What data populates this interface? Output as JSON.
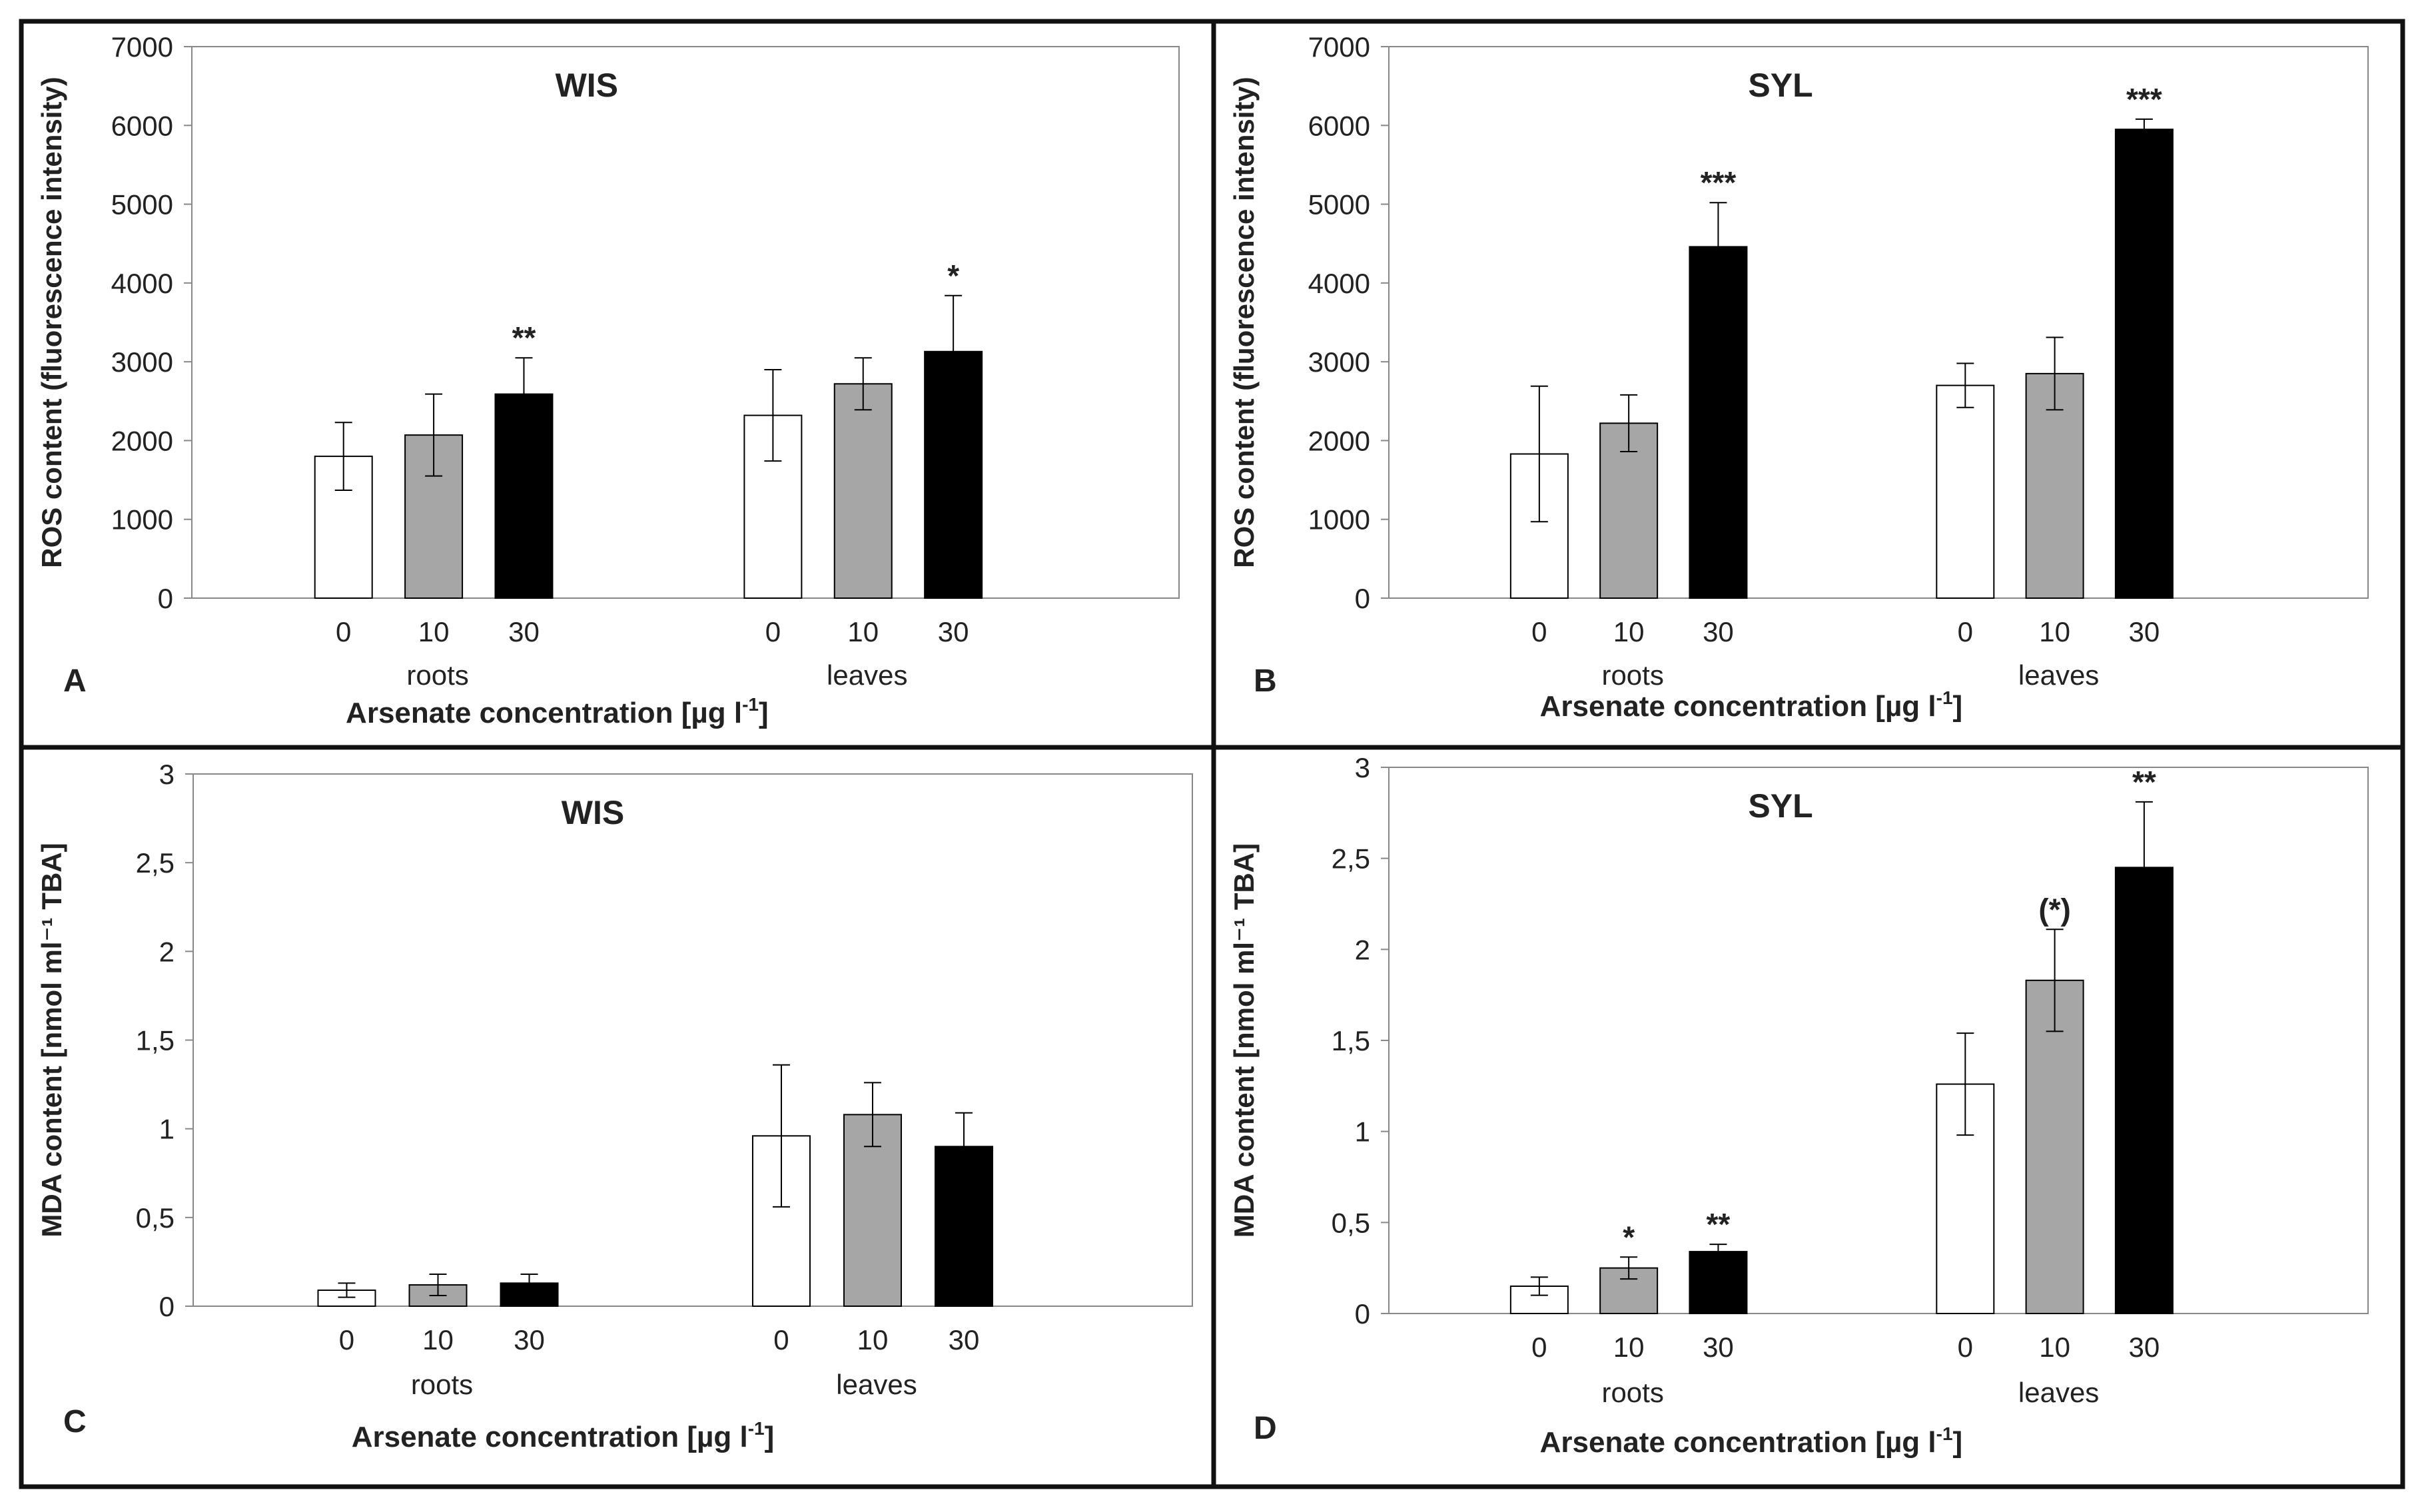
{
  "colors": {
    "0": "#ffffff",
    "10": "#a6a6a6",
    "30": "#000000",
    "border": "#111111",
    "axis": "#888888"
  },
  "chart_data": [
    {
      "type": "bar",
      "panel": "A",
      "title": "WIS",
      "ylabel": "ROS content (fluorescence intensity)",
      "xlabel": "Arsenate concentration [µg l",
      "xlabel_sup": "-1",
      "xlabel_end": "]",
      "ylim": [
        0,
        7000
      ],
      "yticks": [
        "0",
        "1000",
        "2000",
        "3000",
        "4000",
        "5000",
        "6000",
        "7000"
      ],
      "groups": [
        "roots",
        "leaves"
      ],
      "categories": [
        "0",
        "10",
        "30"
      ],
      "bars": [
        {
          "group": "roots",
          "cat": "0",
          "value": 1800,
          "err": 430,
          "sig": ""
        },
        {
          "group": "roots",
          "cat": "10",
          "value": 2070,
          "err": 520,
          "sig": ""
        },
        {
          "group": "roots",
          "cat": "30",
          "value": 2590,
          "err": 460,
          "sig": "**"
        },
        {
          "group": "leaves",
          "cat": "0",
          "value": 2320,
          "err": 580,
          "sig": ""
        },
        {
          "group": "leaves",
          "cat": "10",
          "value": 2720,
          "err": 330,
          "sig": ""
        },
        {
          "group": "leaves",
          "cat": "30",
          "value": 3130,
          "err": 710,
          "sig": "*"
        }
      ]
    },
    {
      "type": "bar",
      "panel": "B",
      "title": "SYL",
      "ylabel": "ROS content (fluorescence intensity)",
      "xlabel": "Arsenate concentration [µg l",
      "xlabel_sup": "-1",
      "xlabel_end": "]",
      "ylim": [
        0,
        7000
      ],
      "yticks": [
        "0",
        "1000",
        "2000",
        "3000",
        "4000",
        "5000",
        "6000",
        "7000"
      ],
      "groups": [
        "roots",
        "leaves"
      ],
      "categories": [
        "0",
        "10",
        "30"
      ],
      "bars": [
        {
          "group": "roots",
          "cat": "0",
          "value": 1830,
          "err": 860,
          "sig": ""
        },
        {
          "group": "roots",
          "cat": "10",
          "value": 2220,
          "err": 360,
          "sig": ""
        },
        {
          "group": "roots",
          "cat": "30",
          "value": 4460,
          "err": 560,
          "sig": "***"
        },
        {
          "group": "leaves",
          "cat": "0",
          "value": 2700,
          "err": 280,
          "sig": ""
        },
        {
          "group": "leaves",
          "cat": "10",
          "value": 2850,
          "err": 460,
          "sig": ""
        },
        {
          "group": "leaves",
          "cat": "30",
          "value": 5950,
          "err": 130,
          "sig": "***"
        }
      ]
    },
    {
      "type": "bar",
      "panel": "C",
      "title": "WIS",
      "ylabel": "MDA content [nmol ml⁻¹ TBA]",
      "xlabel": "Arsenate concentration [µg l",
      "xlabel_sup": "-1",
      "xlabel_end": "]",
      "ylim": [
        0,
        3
      ],
      "yticks": [
        "0",
        "0,5",
        "1",
        "1,5",
        "2",
        "2,5",
        "3"
      ],
      "groups": [
        "roots",
        "leaves"
      ],
      "categories": [
        "0",
        "10",
        "30"
      ],
      "bars": [
        {
          "group": "roots",
          "cat": "0",
          "value": 0.09,
          "err": 0.04,
          "sig": ""
        },
        {
          "group": "roots",
          "cat": "10",
          "value": 0.12,
          "err": 0.06,
          "sig": ""
        },
        {
          "group": "roots",
          "cat": "30",
          "value": 0.13,
          "err": 0.05,
          "sig": ""
        },
        {
          "group": "leaves",
          "cat": "0",
          "value": 0.96,
          "err": 0.4,
          "sig": ""
        },
        {
          "group": "leaves",
          "cat": "10",
          "value": 1.08,
          "err": 0.18,
          "sig": ""
        },
        {
          "group": "leaves",
          "cat": "30",
          "value": 0.9,
          "err": 0.19,
          "sig": ""
        }
      ]
    },
    {
      "type": "bar",
      "panel": "D",
      "title": "SYL",
      "ylabel": "MDA content [nmol ml⁻¹ TBA]",
      "xlabel": "Arsenate concentration [µg l",
      "xlabel_sup": "-1",
      "xlabel_end": "]",
      "ylim": [
        0,
        3
      ],
      "yticks": [
        "0",
        "0,5",
        "1",
        "1,5",
        "2",
        "2,5",
        "3"
      ],
      "groups": [
        "roots",
        "leaves"
      ],
      "categories": [
        "0",
        "10",
        "30"
      ],
      "bars": [
        {
          "group": "roots",
          "cat": "0",
          "value": 0.15,
          "err": 0.05,
          "sig": ""
        },
        {
          "group": "roots",
          "cat": "10",
          "value": 0.25,
          "err": 0.06,
          "sig": "*"
        },
        {
          "group": "roots",
          "cat": "30",
          "value": 0.34,
          "err": 0.04,
          "sig": "**"
        },
        {
          "group": "leaves",
          "cat": "0",
          "value": 1.26,
          "err": 0.28,
          "sig": ""
        },
        {
          "group": "leaves",
          "cat": "10",
          "value": 1.83,
          "err": 0.28,
          "sig": "(*)"
        },
        {
          "group": "leaves",
          "cat": "30",
          "value": 2.45,
          "err": 0.36,
          "sig": "**"
        }
      ]
    }
  ]
}
